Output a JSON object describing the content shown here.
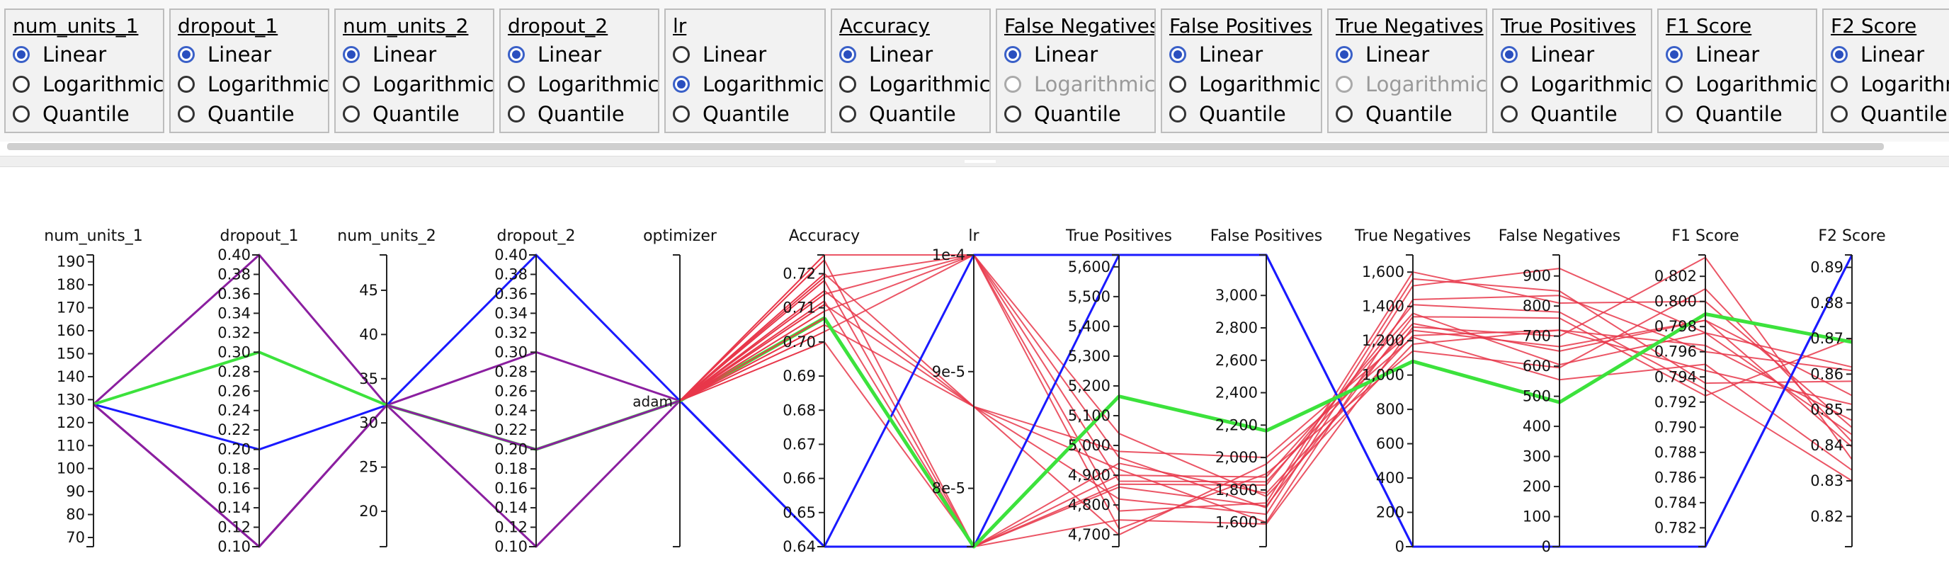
{
  "scale_controls": [
    {
      "name": "num_units_1",
      "options": [
        {
          "label": "Linear",
          "selected": true
        },
        {
          "label": "Logarithmic",
          "selected": false
        },
        {
          "label": "Quantile",
          "selected": false
        }
      ]
    },
    {
      "name": "dropout_1",
      "options": [
        {
          "label": "Linear",
          "selected": true
        },
        {
          "label": "Logarithmic",
          "selected": false
        },
        {
          "label": "Quantile",
          "selected": false
        }
      ]
    },
    {
      "name": "num_units_2",
      "options": [
        {
          "label": "Linear",
          "selected": true
        },
        {
          "label": "Logarithmic",
          "selected": false
        },
        {
          "label": "Quantile",
          "selected": false
        }
      ]
    },
    {
      "name": "dropout_2",
      "options": [
        {
          "label": "Linear",
          "selected": true
        },
        {
          "label": "Logarithmic",
          "selected": false
        },
        {
          "label": "Quantile",
          "selected": false
        }
      ]
    },
    {
      "name": "lr",
      "options": [
        {
          "label": "Linear",
          "selected": false
        },
        {
          "label": "Logarithmic",
          "selected": true
        },
        {
          "label": "Quantile",
          "selected": false
        }
      ]
    },
    {
      "name": "Accuracy",
      "options": [
        {
          "label": "Linear",
          "selected": true
        },
        {
          "label": "Logarithmic",
          "selected": false
        },
        {
          "label": "Quantile",
          "selected": false
        }
      ]
    },
    {
      "name": "False Negatives",
      "options": [
        {
          "label": "Linear",
          "selected": true
        },
        {
          "label": "Logarithmic",
          "selected": false,
          "disabled": true
        },
        {
          "label": "Quantile",
          "selected": false
        }
      ]
    },
    {
      "name": "False Positives",
      "options": [
        {
          "label": "Linear",
          "selected": true
        },
        {
          "label": "Logarithmic",
          "selected": false
        },
        {
          "label": "Quantile",
          "selected": false
        }
      ]
    },
    {
      "name": "True Negatives",
      "options": [
        {
          "label": "Linear",
          "selected": true
        },
        {
          "label": "Logarithmic",
          "selected": false,
          "disabled": true
        },
        {
          "label": "Quantile",
          "selected": false
        }
      ]
    },
    {
      "name": "True Positives",
      "options": [
        {
          "label": "Linear",
          "selected": true
        },
        {
          "label": "Logarithmic",
          "selected": false
        },
        {
          "label": "Quantile",
          "selected": false
        }
      ]
    },
    {
      "name": "F1 Score",
      "options": [
        {
          "label": "Linear",
          "selected": true
        },
        {
          "label": "Logarithmic",
          "selected": false
        },
        {
          "label": "Quantile",
          "selected": false
        }
      ]
    },
    {
      "name": "F2 Score",
      "options": [
        {
          "label": "Linear",
          "selected": true
        },
        {
          "label": "Logarithmic",
          "selected": false
        },
        {
          "label": "Quantile",
          "selected": false
        }
      ]
    }
  ],
  "chart_data": {
    "type": "parallel_coordinates",
    "title": "",
    "colors": {
      "line": "#e8374a",
      "highlight_green": "#3ce23c",
      "highlight_blue": "#1a1aff",
      "purple": "#8b1fa0",
      "axis": "#222222"
    },
    "axes": [
      {
        "name": "num_units_1",
        "scale": "linear",
        "range": [
          66,
          193
        ],
        "ticks": [
          70,
          80,
          90,
          100,
          110,
          120,
          130,
          140,
          150,
          160,
          170,
          180,
          190
        ],
        "tick_side": "left"
      },
      {
        "name": "dropout_1",
        "scale": "linear",
        "range": [
          0.1,
          0.4
        ],
        "ticks": [
          0.1,
          0.12,
          0.14,
          0.16,
          0.18,
          0.2,
          0.22,
          0.24,
          0.26,
          0.28,
          0.3,
          0.32,
          0.34,
          0.36,
          0.38,
          0.4
        ],
        "tick_format": "2f",
        "tick_side": "left"
      },
      {
        "name": "num_units_2",
        "scale": "linear",
        "range": [
          16,
          49
        ],
        "ticks": [
          20,
          25,
          30,
          35,
          40,
          45
        ],
        "tick_side": "left"
      },
      {
        "name": "dropout_2",
        "scale": "linear",
        "range": [
          0.1,
          0.4
        ],
        "ticks": [
          0.1,
          0.12,
          0.14,
          0.16,
          0.18,
          0.2,
          0.22,
          0.24,
          0.26,
          0.28,
          0.3,
          0.32,
          0.34,
          0.36,
          0.38,
          0.4
        ],
        "tick_format": "2f",
        "tick_side": "left"
      },
      {
        "name": "optimizer",
        "scale": "categorical",
        "categories": [
          "adam"
        ],
        "tick_side": "left"
      },
      {
        "name": "Accuracy",
        "scale": "linear",
        "range": [
          0.64,
          0.7255
        ],
        "ticks": [
          0.64,
          0.65,
          0.66,
          0.67,
          0.68,
          0.69,
          0.7,
          0.71,
          0.72
        ],
        "tick_format": "2f",
        "tick_side": "left"
      },
      {
        "name": "lr",
        "scale": "linear",
        "range": [
          7.5e-05,
          0.0001
        ],
        "ticks": [
          8e-05,
          9e-05,
          0.0001
        ],
        "tick_labels": [
          "8e-5",
          "9e-5",
          "1e-4"
        ],
        "tick_side": "left"
      },
      {
        "name": "True Positives",
        "scale": "linear",
        "range": [
          4660,
          5640
        ],
        "ticks": [
          4700,
          4800,
          4900,
          5000,
          5100,
          5200,
          5300,
          5400,
          5500,
          5600
        ],
        "tick_format": "comma",
        "tick_side": "left"
      },
      {
        "name": "False Positives",
        "scale": "linear",
        "range": [
          1450,
          3250
        ],
        "ticks": [
          1600,
          1800,
          2000,
          2200,
          2400,
          2600,
          2800,
          3000
        ],
        "tick_format": "comma",
        "tick_side": "left"
      },
      {
        "name": "True Negatives",
        "scale": "linear",
        "range": [
          0,
          1700
        ],
        "ticks": [
          0,
          200,
          400,
          600,
          800,
          1000,
          1200,
          1400,
          1600
        ],
        "tick_format": "comma",
        "tick_side": "left"
      },
      {
        "name": "False Negatives",
        "scale": "linear",
        "range": [
          0,
          970
        ],
        "ticks": [
          0,
          100,
          200,
          300,
          400,
          500,
          600,
          700,
          800,
          900
        ],
        "tick_side": "left"
      },
      {
        "name": "F1 Score",
        "scale": "linear",
        "range": [
          0.7805,
          0.8037
        ],
        "ticks": [
          0.782,
          0.784,
          0.786,
          0.788,
          0.79,
          0.792,
          0.794,
          0.796,
          0.798,
          0.8,
          0.802
        ],
        "tick_format": "3f",
        "tick_side": "left"
      },
      {
        "name": "F2 Score",
        "scale": "linear",
        "range": [
          0.8115,
          0.8935
        ],
        "ticks": [
          0.82,
          0.83,
          0.84,
          0.85,
          0.86,
          0.87,
          0.88,
          0.89
        ],
        "tick_format": "2f",
        "tick_side": "left"
      }
    ],
    "hyperparameter_lines": [
      {
        "color": "purple",
        "values": [
          128,
          0.4,
          32,
          0.3,
          "adam"
        ]
      },
      {
        "color": "purple",
        "values": [
          128,
          0.1,
          32,
          0.1,
          "adam"
        ]
      },
      {
        "color": "blue",
        "values": [
          128,
          0.2,
          32,
          0.4,
          "adam"
        ]
      },
      {
        "color": "green",
        "values": [
          128,
          0.3,
          32,
          0.2,
          "adam"
        ]
      },
      {
        "color": "purple",
        "values": [
          128,
          0.1,
          32,
          0.2,
          "adam"
        ]
      }
    ],
    "metric_lines": [
      {
        "color": "blue",
        "values": [
          0.64,
          0.0001,
          5640,
          3250,
          0,
          0,
          0.7805,
          0.8935
        ]
      },
      {
        "color": "blue",
        "values": [
          0.64,
          7.5e-05,
          5640,
          3250,
          0,
          0,
          0.7805,
          0.8935
        ]
      },
      {
        "color": "green",
        "values": [
          0.707,
          7.5e-05,
          5165,
          2165,
          1080,
          480,
          0.799,
          0.869
        ]
      },
      {
        "values": [
          0.726,
          0.0001,
          4880,
          1850,
          1300,
          650,
          0.7985,
          0.8395
        ]
      },
      {
        "values": [
          0.724,
          7.5e-05,
          4940,
          1780,
          1230,
          720,
          0.7945,
          0.8515
        ]
      },
      {
        "values": [
          0.72,
          8.7e-05,
          4920,
          1600,
          1440,
          835,
          0.796,
          0.861
        ]
      },
      {
        "values": [
          0.719,
          0.0001,
          4720,
          1900,
          1140,
          595,
          0.801,
          0.841
        ]
      },
      {
        "values": [
          0.718,
          7.5e-05,
          4860,
          1700,
          1340,
          760,
          0.7925,
          0.87
        ]
      },
      {
        "values": [
          0.715,
          8.7e-05,
          4980,
          2000,
          1260,
          665,
          0.7985,
          0.854
        ]
      },
      {
        "values": [
          0.714,
          0.0001,
          4780,
          1720,
          1600,
          810,
          0.8,
          0.845
        ]
      },
      {
        "values": [
          0.712,
          7.5e-05,
          4900,
          1880,
          1360,
          605,
          0.7975,
          0.862
        ]
      },
      {
        "values": [
          0.711,
          8.7e-05,
          4820,
          1650,
          1520,
          925,
          0.7975,
          0.843
        ]
      },
      {
        "values": [
          0.709,
          0.0001,
          5040,
          1760,
          1180,
          720,
          0.7965,
          0.847
        ]
      },
      {
        "values": [
          0.707,
          7.5e-05,
          4870,
          1830,
          1410,
          780,
          0.793,
          0.83
        ]
      },
      {
        "values": [
          0.705,
          8.7e-05,
          4700,
          1960,
          1220,
          555,
          0.795,
          0.833
        ]
      },
      {
        "values": [
          0.703,
          0.0001,
          4960,
          1690,
          1560,
          850,
          0.7935,
          0.858
        ]
      },
      {
        "values": [
          0.7,
          7.5e-05,
          4750,
          1590,
          1280,
          700,
          0.8035,
          0.836
        ]
      }
    ]
  }
}
